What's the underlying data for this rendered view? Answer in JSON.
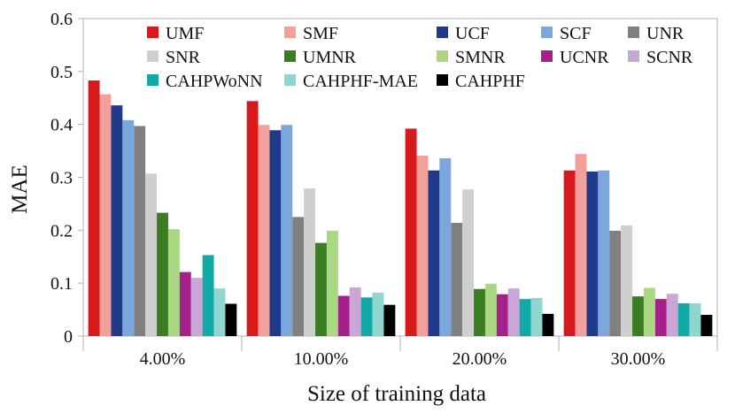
{
  "chart_data": {
    "type": "bar",
    "title": "",
    "xlabel": "Size of training data",
    "ylabel": "MAE",
    "ylim": [
      0,
      0.6
    ],
    "yticks": [
      "0",
      "0.1",
      "0.2",
      "0.3",
      "0.4",
      "0.5",
      "0.6"
    ],
    "ytick_values": [
      0,
      0.1,
      0.2,
      0.3,
      0.4,
      0.5,
      0.6
    ],
    "grid": false,
    "legend_position": "top",
    "categories": [
      "4.00%",
      "10.00%",
      "20.00%",
      "30.00%"
    ],
    "series": [
      {
        "name": "UMF",
        "color": "#d7191c",
        "values": [
          0.483,
          0.444,
          0.392,
          0.313
        ]
      },
      {
        "name": "SMF",
        "color": "#f4a09a",
        "values": [
          0.457,
          0.399,
          0.341,
          0.344
        ]
      },
      {
        "name": "UCF",
        "color": "#1f3a8a",
        "values": [
          0.436,
          0.389,
          0.313,
          0.311
        ]
      },
      {
        "name": "SCF",
        "color": "#7ba7dd",
        "values": [
          0.408,
          0.399,
          0.336,
          0.313
        ]
      },
      {
        "name": "UNR",
        "color": "#808080",
        "values": [
          0.397,
          0.225,
          0.214,
          0.199
        ]
      },
      {
        "name": "SNR",
        "color": "#cfcfcf",
        "values": [
          0.307,
          0.279,
          0.277,
          0.209
        ]
      },
      {
        "name": "UMNR",
        "color": "#3a7d22",
        "values": [
          0.233,
          0.176,
          0.089,
          0.075
        ]
      },
      {
        "name": "SMNR",
        "color": "#a8d882",
        "values": [
          0.202,
          0.199,
          0.099,
          0.091
        ]
      },
      {
        "name": "UCNR",
        "color": "#a4208a",
        "values": [
          0.121,
          0.076,
          0.079,
          0.07
        ]
      },
      {
        "name": "SCNR",
        "color": "#c9a6d6",
        "values": [
          0.11,
          0.092,
          0.09,
          0.08
        ]
      },
      {
        "name": "CAHPWoNN",
        "color": "#12aaa7",
        "values": [
          0.153,
          0.073,
          0.07,
          0.062
        ]
      },
      {
        "name": "CAHPHF-MAE",
        "color": "#8fd6d0",
        "values": [
          0.09,
          0.082,
          0.072,
          0.062
        ]
      },
      {
        "name": "CAHPHF",
        "color": "#000000",
        "values": [
          0.061,
          0.059,
          0.042,
          0.04
        ]
      }
    ]
  }
}
